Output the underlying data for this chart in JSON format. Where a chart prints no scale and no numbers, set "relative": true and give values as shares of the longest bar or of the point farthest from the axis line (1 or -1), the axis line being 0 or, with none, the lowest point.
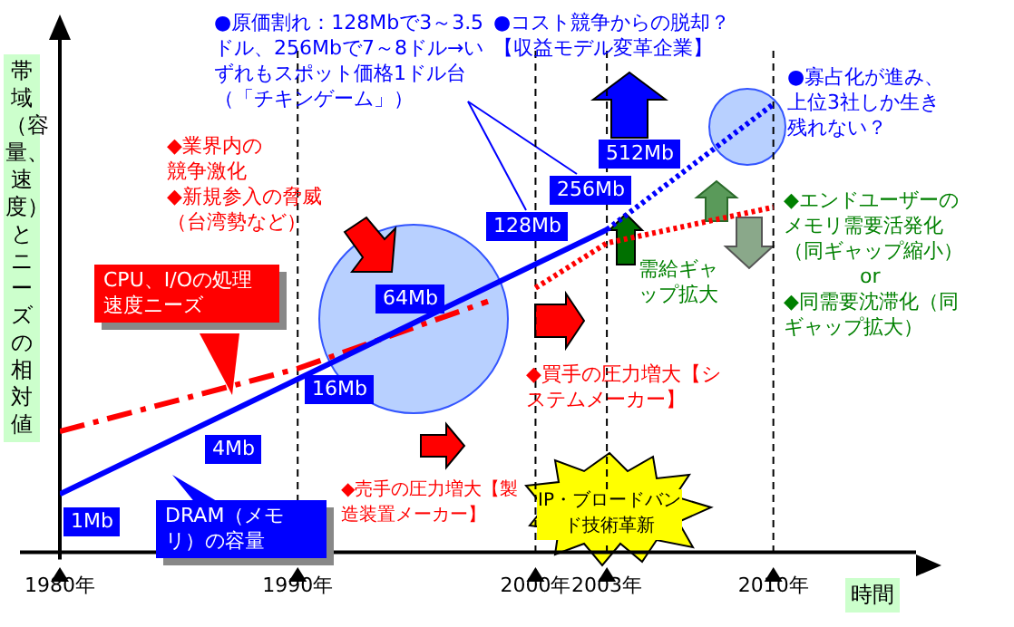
{
  "chart_data": {
    "type": "line",
    "relative": true,
    "xlabel": "時間",
    "ylabel": "帯域（容量、速度）とニーズの相対値",
    "xlim": [
      1980,
      2016
    ],
    "xticks": [
      {
        "value": 1980,
        "label": "1980年"
      },
      {
        "value": 1990,
        "label": "1990年"
      },
      {
        "value": 2000,
        "label": "2000年"
      },
      {
        "value": 2003,
        "label": "2003年"
      },
      {
        "value": 2010,
        "label": "2010年"
      }
    ],
    "series": [
      {
        "color": "#0000ff",
        "line_style": "solid",
        "x": [
          1980,
          2003
        ],
        "values": [
          0.13,
          0.72
        ]
      },
      {
        "color": "#0000ff",
        "line_style": "dotted",
        "x": [
          2003,
          2010
        ],
        "values": [
          0.72,
          1
        ]
      },
      {
        "color": "#ff0000",
        "line_style": "dashed",
        "x": [
          1980,
          1990,
          1998
        ],
        "values": [
          0.27,
          0.41,
          0.56
        ]
      },
      {
        "color": "#ff0000",
        "line_style": "dotted",
        "x": [
          2000,
          2003,
          2010
        ],
        "values": [
          0.59,
          0.69,
          0.77
        ]
      }
    ],
    "ref_lines": [
      {
        "axis": "x",
        "value": 1990,
        "line_style": "dashed",
        "color": "#000000"
      },
      {
        "axis": "x",
        "value": 2000,
        "line_style": "dashed",
        "color": "#000000"
      },
      {
        "axis": "x",
        "value": 2003,
        "line_style": "dashed",
        "color": "#000000"
      },
      {
        "axis": "x",
        "value": 2010,
        "line_style": "dashed",
        "color": "#000000"
      }
    ],
    "annotations": [
      "●原価割れ：128Mbで3～3.5ドル、256Mbで7～8ドル→いずれもスポット価格1ドル台（「チキンゲーム」）",
      "●コスト競争からの脱却？【収益モデル変革企業】",
      "●寡占化が進み、上位3社しか生き残れない？",
      "◆業界内の競争激化",
      "◆新規参入の脅威（台湾勢など）",
      "◆エンドユーザーのメモリ需要活発化（同ギャップ縮小）",
      "or",
      "◆同需要沈滞化（同ギャップ拡大）",
      "需給ギャップ拡大",
      "◆買手の圧力増大【システムメーカー】",
      "◆売手の圧力増大【製造装置メーカー】",
      "IP・ブロードバンド技術革新",
      "1Mb",
      "4Mb",
      "16Mb",
      "64Mb",
      "128Mb",
      "256Mb",
      "512Mb",
      "DRAM（メモリ）の容量",
      "CPU、I/Oの処理速度ニーズ"
    ],
    "grid": false,
    "legend": false,
    "marker": "none"
  }
}
